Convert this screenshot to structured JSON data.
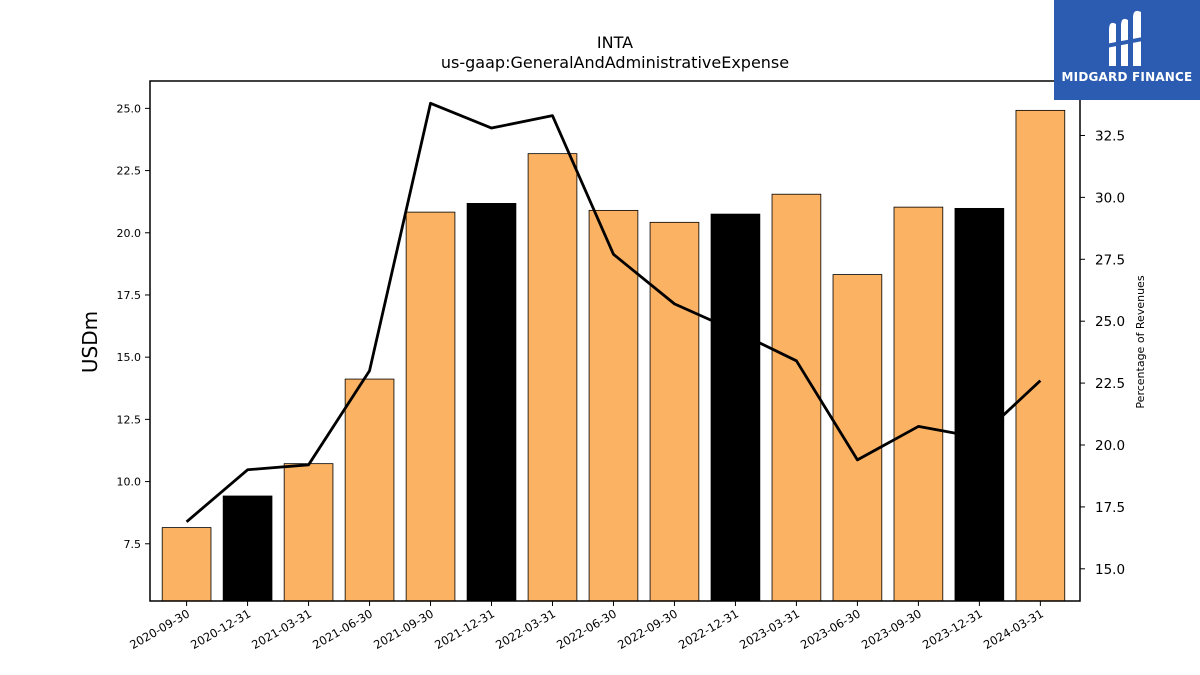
{
  "header": {
    "ticker": "INTA",
    "concept": "us-gaap:GeneralAndAdministrativeExpense"
  },
  "logo": {
    "text": "MIDGARD FINANCE",
    "icon": "midgard-logo-icon",
    "color": "#2c5cb2"
  },
  "chart_data": {
    "type": "bar",
    "title": "INTA",
    "subtitle": "us-gaap:GeneralAndAdministrativeExpense",
    "xlabel": "",
    "ylabel": "USDm",
    "y2label": "Percentage of Revenues",
    "categories": [
      "2020-09-30",
      "2020-12-31",
      "2021-03-31",
      "2021-06-30",
      "2021-09-30",
      "2021-12-31",
      "2022-03-31",
      "2022-06-30",
      "2022-09-30",
      "2022-12-31",
      "2023-03-31",
      "2023-06-30",
      "2023-09-30",
      "2023-12-31",
      "2024-03-31"
    ],
    "series": [
      {
        "type": "bar",
        "axis": "left",
        "values": [
          8.15,
          9.42,
          10.72,
          14.12,
          20.83,
          21.18,
          23.18,
          20.9,
          20.42,
          20.75,
          21.55,
          18.32,
          21.03,
          20.98,
          24.92
        ],
        "colors": [
          "#fbb263",
          "#000000",
          "#fbb263",
          "#fbb263",
          "#fbb263",
          "#000000",
          "#fbb263",
          "#fbb263",
          "#fbb263",
          "#000000",
          "#fbb263",
          "#fbb263",
          "#fbb263",
          "#000000",
          "#fbb263"
        ]
      },
      {
        "type": "line",
        "axis": "right",
        "color": "#000000",
        "values": [
          16.9,
          19.0,
          19.2,
          23.0,
          33.8,
          32.8,
          33.3,
          27.7,
          25.7,
          24.6,
          23.4,
          19.4,
          20.75,
          20.3,
          22.6
        ]
      }
    ],
    "ylim": [
      5.2,
      26.1
    ],
    "y2lim": [
      13.7,
      34.7
    ],
    "yticks": [
      7.5,
      10.0,
      12.5,
      15.0,
      17.5,
      20.0,
      22.5,
      25.0
    ],
    "y2ticks": [
      15.0,
      17.5,
      20.0,
      22.5,
      25.0,
      27.5,
      30.0,
      32.5
    ],
    "grid": false,
    "legend": "none"
  }
}
